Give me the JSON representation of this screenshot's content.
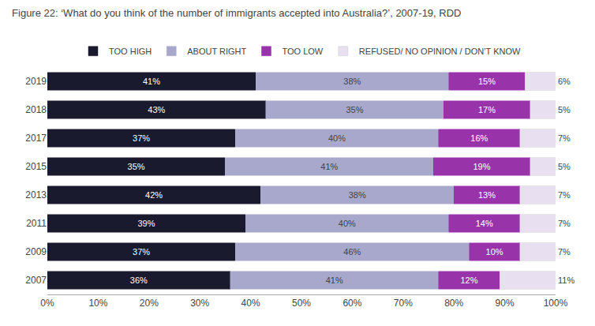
{
  "chart_data": {
    "type": "bar",
    "orientation": "horizontal",
    "stacked": true,
    "title": "Figure 22: ‘What do you think of the number of immigrants accepted into Australia?’, 2007-19, RDD",
    "categories": [
      "2019",
      "2018",
      "2017",
      "2015",
      "2013",
      "2011",
      "2009",
      "2007"
    ],
    "series": [
      {
        "name": "TOO HIGH",
        "color": "#1a1a2e",
        "values": [
          41,
          43,
          37,
          35,
          42,
          39,
          37,
          36
        ],
        "value_labels": [
          "41%",
          "43%",
          "37%",
          "35%",
          "42%",
          "39%",
          "37%",
          "36%"
        ]
      },
      {
        "name": "ABOUT RIGHT",
        "color": "#a8a8cc",
        "values": [
          38,
          35,
          40,
          41,
          38,
          40,
          46,
          41
        ],
        "value_labels": [
          "38%",
          "35%",
          "40%",
          "41%",
          "38%",
          "40%",
          "46%",
          "41%"
        ]
      },
      {
        "name": "TOO LOW",
        "color": "#9933aa",
        "values": [
          15,
          17,
          16,
          19,
          13,
          14,
          10,
          12
        ],
        "value_labels": [
          "15%",
          "17%",
          "16%",
          "19%",
          "13%",
          "14%",
          "10%",
          "12%"
        ]
      },
      {
        "name": "REFUSED/ NO OPINION / DON’T KNOW",
        "color": "#e8e0f0",
        "values": [
          6,
          5,
          7,
          5,
          7,
          7,
          7,
          11
        ],
        "value_labels": [
          "6%",
          "5%",
          "7%",
          "5%",
          "7%",
          "7%",
          "7%",
          "11%"
        ]
      }
    ],
    "xlim": [
      0,
      100
    ],
    "xticks": [
      {
        "value": 0,
        "label": "0%"
      },
      {
        "value": 10,
        "label": "10%"
      },
      {
        "value": 20,
        "label": "20%"
      },
      {
        "value": 30,
        "label": "30%"
      },
      {
        "value": 40,
        "label": "40%"
      },
      {
        "value": 50,
        "label": "50%"
      },
      {
        "value": 60,
        "label": "60%"
      },
      {
        "value": 70,
        "label": "70%"
      },
      {
        "value": 80,
        "label": "80%"
      },
      {
        "value": 90,
        "label": "90%"
      },
      {
        "value": 100,
        "label": "100%"
      }
    ],
    "data_labels": true,
    "grid": false,
    "legend": "top"
  }
}
